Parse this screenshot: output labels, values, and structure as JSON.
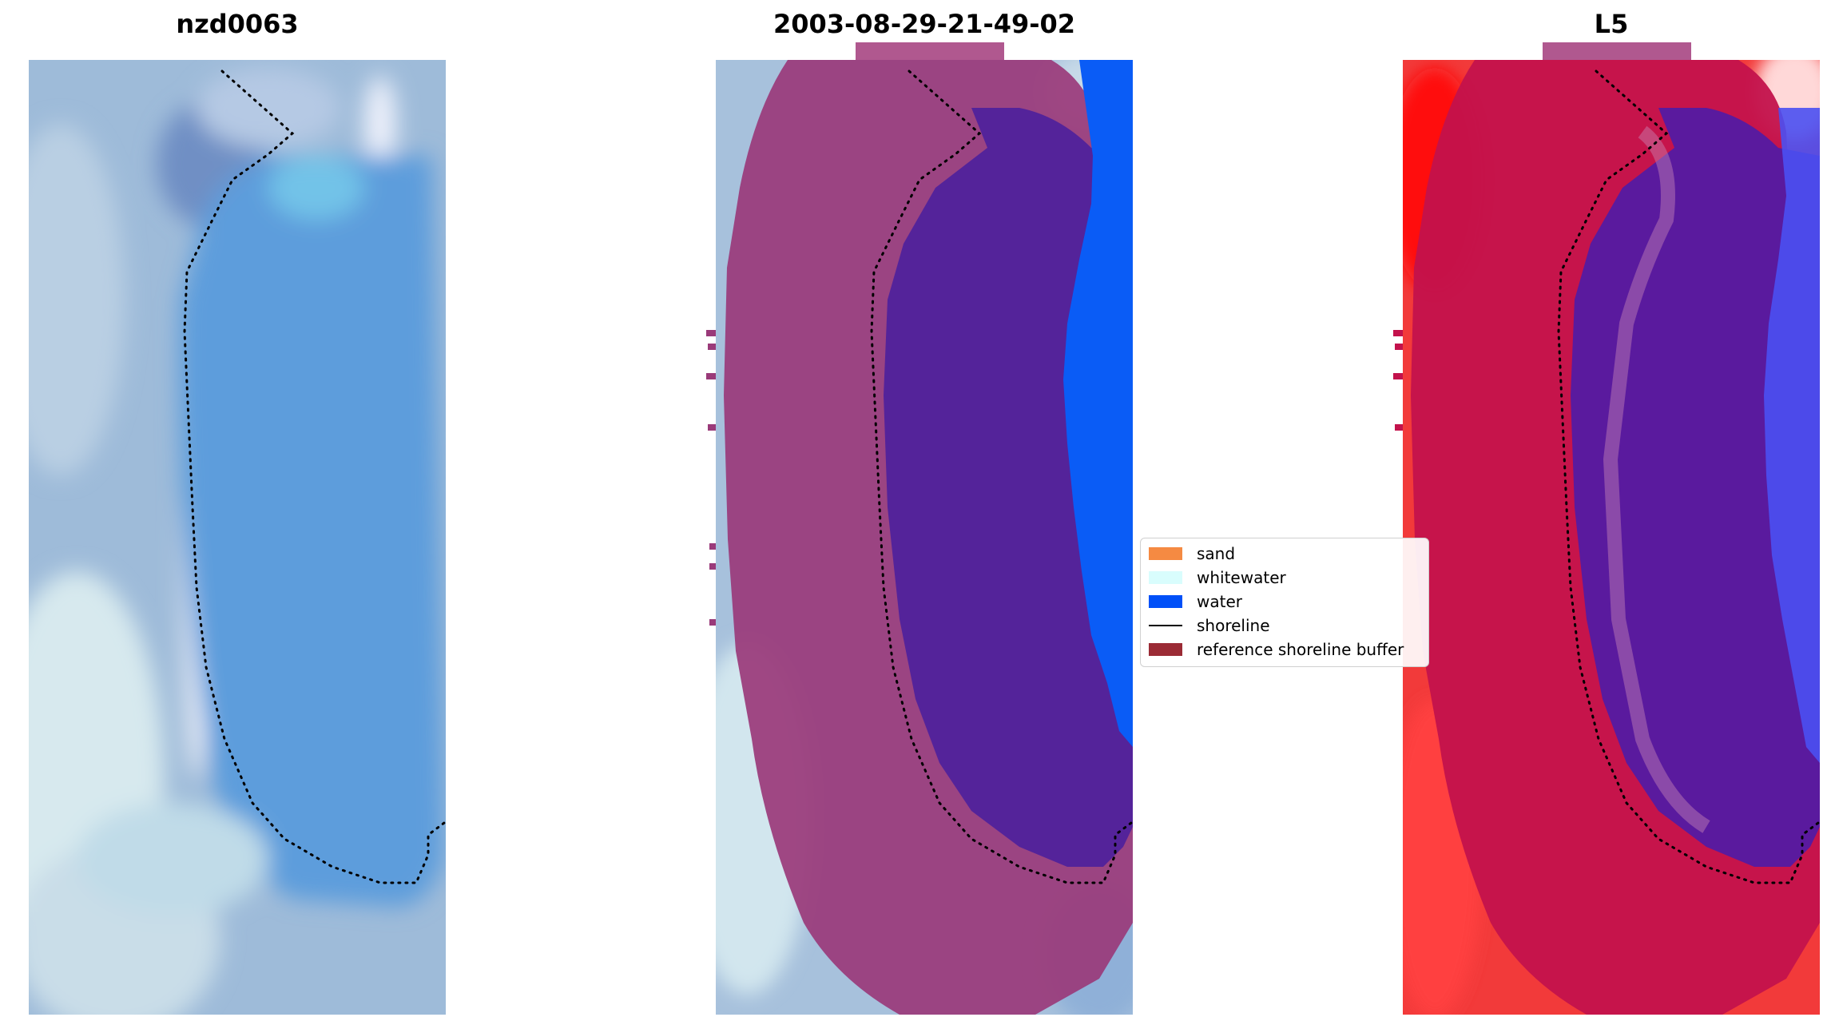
{
  "panels": [
    {
      "title": "nzd0063"
    },
    {
      "title": "2003-08-29-21-49-02"
    },
    {
      "title": "L5"
    }
  ],
  "legend": {
    "items": [
      {
        "label": "sand",
        "color": "#f58a42",
        "kind": "patch"
      },
      {
        "label": "whitewater",
        "color": "#d9fdfd",
        "kind": "patch"
      },
      {
        "label": "water",
        "color": "#0050f8",
        "kind": "patch"
      },
      {
        "label": "shoreline",
        "color": "#000000",
        "kind": "line"
      },
      {
        "label": "reference shoreline buffer",
        "color": "#9b2b35",
        "kind": "patch"
      }
    ]
  },
  "colors": {
    "rgb_base": "#8fb6dc",
    "water_rgb": "#5f9edc",
    "buffer_overlay": "#9a2f63",
    "water_class": "#0a5cf6",
    "index_red": "#e0003a",
    "index_blue": "#5a46f0",
    "index_purple": "#5a1a9e"
  }
}
